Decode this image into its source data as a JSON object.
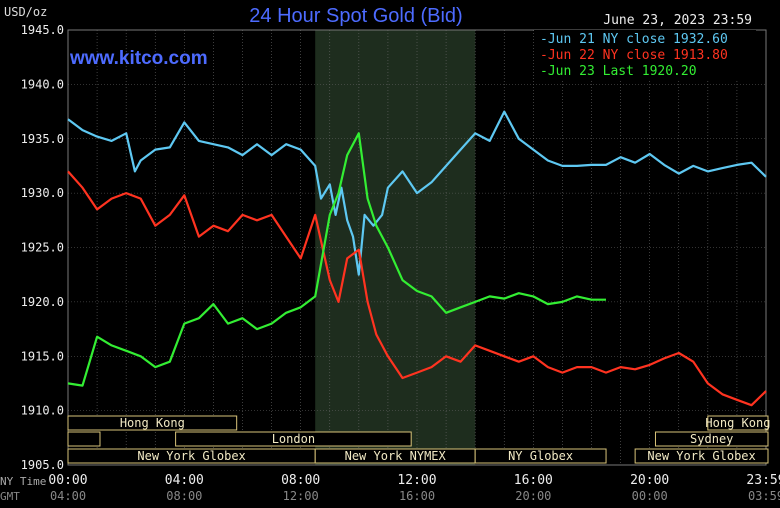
{
  "chart_data": {
    "type": "line",
    "title": "24 Hour Spot Gold (Bid)",
    "ylabel": "USD/oz",
    "datetime": "June 23, 2023 23:59",
    "watermark": "www.kitco.com",
    "ylim": [
      1905,
      1945
    ],
    "xlim": [
      0,
      24
    ],
    "grid": true,
    "legend_position": "top-right",
    "y_ticks": [
      "1945.0",
      "1940.0",
      "1935.0",
      "1930.0",
      "1925.0",
      "1920.0",
      "1915.0",
      "1910.0",
      "1905.0"
    ],
    "x_ticks_ny": [
      "00:00",
      "04:00",
      "08:00",
      "12:00",
      "16:00",
      "20:00",
      "23:59"
    ],
    "x_ticks_gmt": [
      "04:00",
      "08:00",
      "12:00",
      "16:00",
      "20:00",
      "00:00",
      "03:59"
    ],
    "x_axis_labels": {
      "ny": "NY Time",
      "gmt": "GMT"
    },
    "highlight_range_hours": [
      8.5,
      14
    ],
    "sessions": [
      {
        "name": "Hong Kong",
        "start": 0,
        "end": 5.8
      },
      {
        "name": "",
        "start": 0,
        "end": 1.1
      },
      {
        "name": "London",
        "start": 3.7,
        "end": 11.8
      },
      {
        "name": "New York Globex",
        "start": 0,
        "end": 8.5
      },
      {
        "name": "New York NYMEX",
        "start": 8.5,
        "end": 14
      },
      {
        "name": "NY Globex",
        "start": 14,
        "end": 18.5
      },
      {
        "name": "Hong Kong",
        "start": 22,
        "end": 26
      },
      {
        "name": "Sydney",
        "start": 20.2,
        "end": 26
      },
      {
        "name": "New York Globex",
        "start": 19.5,
        "end": 26
      }
    ],
    "series": [
      {
        "name": "Jun 21 NY close 1932.60",
        "color": "#5ec8f2",
        "x": [
          0,
          0.5,
          1,
          1.5,
          2,
          2.3,
          2.5,
          3,
          3.5,
          4,
          4.5,
          5,
          5.5,
          6,
          6.5,
          7,
          7.5,
          8,
          8.5,
          8.7,
          9,
          9.2,
          9.4,
          9.6,
          9.8,
          10,
          10.2,
          10.5,
          10.8,
          11,
          11.5,
          12,
          12.5,
          13,
          13.5,
          14,
          14.5,
          15,
          15.5,
          16,
          16.5,
          17,
          17.5,
          18,
          18.5,
          19,
          19.5,
          20,
          20.5,
          21,
          21.5,
          22,
          22.5,
          23,
          23.5,
          24
        ],
        "values": [
          1936.8,
          1935.8,
          1935.2,
          1934.8,
          1935.5,
          1932.0,
          1933.0,
          1934.0,
          1934.2,
          1936.5,
          1934.8,
          1934.5,
          1934.2,
          1933.5,
          1934.5,
          1933.5,
          1934.5,
          1934.0,
          1932.5,
          1929.5,
          1930.8,
          1928.0,
          1930.5,
          1927.5,
          1926.0,
          1922.5,
          1928.0,
          1927.0,
          1928.0,
          1930.5,
          1932.0,
          1930.0,
          1931.0,
          1932.5,
          1934.0,
          1935.5,
          1934.8,
          1937.5,
          1935.0,
          1934.0,
          1933.0,
          1932.5,
          1932.5,
          1932.6,
          1932.6,
          1933.3,
          1932.8,
          1933.6,
          1932.6,
          1931.8,
          1932.5,
          1932.0,
          1932.3,
          1932.6,
          1932.8,
          1931.5
        ]
      },
      {
        "name": "Jun 22 NY close 1913.80",
        "color": "#ff3320",
        "x": [
          0,
          0.5,
          1,
          1.5,
          2,
          2.5,
          3,
          3.5,
          4,
          4.5,
          5,
          5.5,
          6,
          6.5,
          7,
          7.5,
          8,
          8.5,
          9,
          9.3,
          9.6,
          10,
          10.3,
          10.6,
          11,
          11.5,
          12,
          12.5,
          13,
          13.5,
          14,
          14.5,
          15,
          15.5,
          16,
          16.5,
          17,
          17.5,
          18,
          18.5,
          19,
          19.5,
          20,
          20.5,
          21,
          21.5,
          22,
          22.5,
          23,
          23.5,
          24
        ],
        "values": [
          1932.0,
          1930.5,
          1928.5,
          1929.5,
          1930.0,
          1929.5,
          1927.0,
          1928.0,
          1929.8,
          1926.0,
          1927.0,
          1926.5,
          1928.0,
          1927.5,
          1928.0,
          1926.0,
          1924.0,
          1928.0,
          1922.0,
          1920.0,
          1924.0,
          1924.8,
          1920.0,
          1917.0,
          1915.0,
          1913.0,
          1913.5,
          1914.0,
          1915.0,
          1914.5,
          1916.0,
          1915.5,
          1915.0,
          1914.5,
          1915.0,
          1914.0,
          1913.5,
          1914.0,
          1914.0,
          1913.5,
          1914.0,
          1913.8,
          1914.2,
          1914.8,
          1915.3,
          1914.5,
          1912.5,
          1911.5,
          1911.0,
          1910.5,
          1911.8
        ]
      },
      {
        "name": "Jun 23 Last 1920.20",
        "color": "#33ee33",
        "x": [
          0,
          0.5,
          1,
          1.5,
          2,
          2.5,
          3,
          3.5,
          4,
          4.5,
          5,
          5.5,
          6,
          6.5,
          7,
          7.5,
          8,
          8.5,
          9,
          9.3,
          9.6,
          10,
          10.3,
          10.6,
          11,
          11.5,
          12,
          12.5,
          13,
          13.5,
          14,
          14.5,
          15,
          15.5,
          16,
          16.5,
          17,
          17.5,
          18,
          18.5
        ],
        "values": [
          1912.5,
          1912.3,
          1916.8,
          1916.0,
          1915.5,
          1915.0,
          1914.0,
          1914.5,
          1918.0,
          1918.5,
          1919.8,
          1918.0,
          1918.5,
          1917.5,
          1918.0,
          1919.0,
          1919.5,
          1920.5,
          1928.0,
          1930.0,
          1933.5,
          1935.5,
          1929.5,
          1927.0,
          1925.0,
          1922.0,
          1921.0,
          1920.5,
          1919.0,
          1919.5,
          1920.0,
          1920.5,
          1920.3,
          1920.8,
          1920.5,
          1919.8,
          1920.0,
          1920.5,
          1920.2,
          1920.2
        ]
      }
    ]
  }
}
